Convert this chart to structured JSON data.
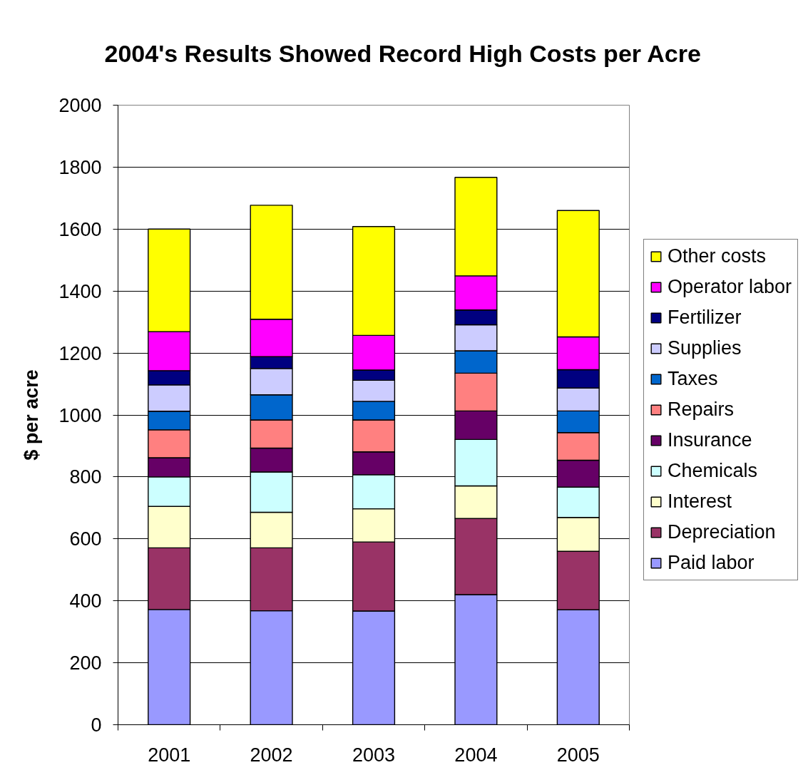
{
  "chart_data": {
    "type": "bar",
    "stacked": true,
    "title": "2004's Results Showed Record High Costs per Acre",
    "ylabel": "$ per acre",
    "categories": [
      "2001",
      "2002",
      "2003",
      "2004",
      "2005"
    ],
    "series": [
      {
        "name": "Paid labor",
        "color": "#9999ff",
        "values": [
          372,
          368,
          367,
          420,
          371
        ]
      },
      {
        "name": "Depreciation",
        "color": "#993366",
        "values": [
          199,
          203,
          223,
          246,
          189
        ]
      },
      {
        "name": "Interest",
        "color": "#ffffcc",
        "values": [
          134,
          115,
          107,
          105,
          109
        ]
      },
      {
        "name": "Chemicals",
        "color": "#ccffff",
        "values": [
          95,
          130,
          110,
          150,
          98
        ]
      },
      {
        "name": "Insurance",
        "color": "#660066",
        "values": [
          62,
          77,
          74,
          92,
          87
        ]
      },
      {
        "name": "Repairs",
        "color": "#ff8080",
        "values": [
          90,
          91,
          103,
          122,
          89
        ]
      },
      {
        "name": "Taxes",
        "color": "#0066cc",
        "values": [
          60,
          81,
          60,
          72,
          70
        ]
      },
      {
        "name": "Supplies",
        "color": "#ccccff",
        "values": [
          85,
          85,
          68,
          84,
          74
        ]
      },
      {
        "name": "Fertilizer",
        "color": "#000080",
        "values": [
          46,
          38,
          33,
          48,
          59
        ]
      },
      {
        "name": "Operator labor",
        "color": "#ff00ff",
        "values": [
          126,
          121,
          112,
          110,
          106
        ]
      },
      {
        "name": "Other costs",
        "color": "#ffff00",
        "values": [
          331,
          368,
          351,
          318,
          408
        ]
      }
    ],
    "ylim": [
      0,
      2000
    ],
    "yticks": [
      0,
      200,
      400,
      600,
      800,
      1000,
      1200,
      1400,
      1600,
      1800,
      2000
    ],
    "grid": "y",
    "legend": "right"
  }
}
